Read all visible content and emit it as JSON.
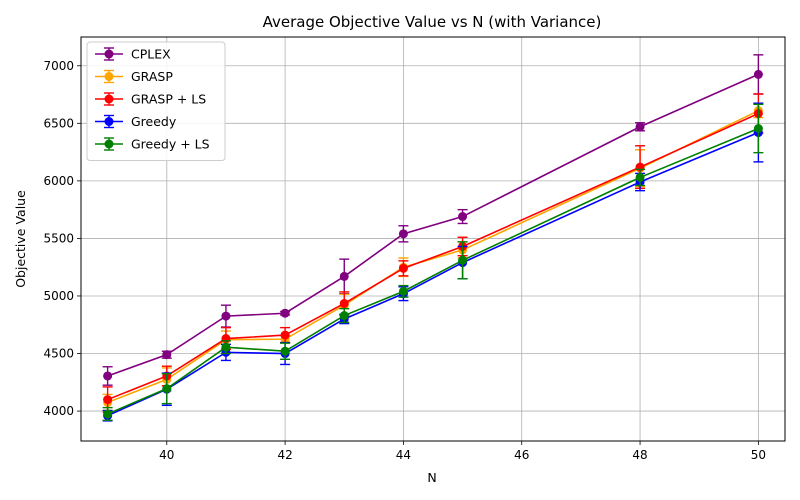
{
  "chart_data": {
    "type": "line",
    "title": "Average Objective Value vs N (with Variance)",
    "xlabel": "N",
    "ylabel": "Objective Value",
    "xlim": [
      38.55,
      50.45
    ],
    "ylim": [
      3740,
      7250
    ],
    "xticks": [
      40,
      42,
      44,
      46,
      48,
      50
    ],
    "yticks": [
      4000,
      4500,
      5000,
      5500,
      6000,
      6500,
      7000
    ],
    "x": [
      39,
      40,
      41,
      42,
      43,
      44,
      45,
      48,
      50
    ],
    "grid": true,
    "legend_position": "top-left",
    "error_bars": true,
    "series": [
      {
        "name": "CPLEX",
        "color": "#800080",
        "values": [
          4305,
          4490,
          4825,
          4850,
          5170,
          5540,
          5690,
          6470,
          6925
        ],
        "errors": [
          80,
          30,
          95,
          15,
          150,
          70,
          60,
          35,
          170
        ]
      },
      {
        "name": "GRASP",
        "color": "#ffa500",
        "values": [
          4075,
          4275,
          4620,
          4625,
          4920,
          5250,
          5400,
          6110,
          6610
        ],
        "errors": [
          70,
          100,
          75,
          30,
          95,
          80,
          70,
          160,
          60
        ]
      },
      {
        "name": "GRASP + LS",
        "color": "#ff0000",
        "values": [
          4100,
          4305,
          4630,
          4660,
          4935,
          5240,
          5430,
          6120,
          6585
        ],
        "errors": [
          110,
          85,
          95,
          65,
          100,
          65,
          80,
          185,
          170
        ]
      },
      {
        "name": "Greedy",
        "color": "#0000ff",
        "values": [
          3960,
          4190,
          4510,
          4500,
          4800,
          5020,
          5290,
          5990,
          6420
        ],
        "errors": [
          45,
          140,
          70,
          95,
          40,
          60,
          140,
          75,
          255
        ]
      },
      {
        "name": "Greedy + LS",
        "color": "#008000",
        "values": [
          3975,
          4195,
          4555,
          4520,
          4830,
          5040,
          5310,
          6030,
          6455
        ],
        "errors": [
          55,
          130,
          55,
          70,
          60,
          50,
          160,
          70,
          210
        ]
      }
    ]
  }
}
